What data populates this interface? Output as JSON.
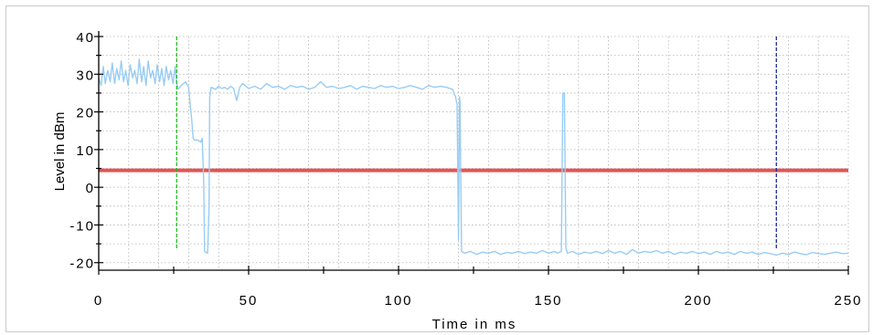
{
  "chart_data": {
    "type": "line",
    "title": "",
    "xlabel": "Time in ms",
    "ylabel": "Level in dBm",
    "xlim": [
      0,
      250
    ],
    "ylim": [
      -22,
      40
    ],
    "x_ticks": [
      0,
      50,
      100,
      150,
      200,
      250
    ],
    "y_ticks": [
      -20,
      -10,
      0,
      10,
      20,
      30,
      40
    ],
    "grid": true,
    "series": [
      {
        "color": "#99ccf5",
        "points": [
          [
            0,
            29
          ],
          [
            0.8,
            27
          ],
          [
            1.5,
            32
          ],
          [
            2.2,
            27.5
          ],
          [
            3,
            31
          ],
          [
            3.8,
            28
          ],
          [
            4.5,
            33
          ],
          [
            5.3,
            27.5
          ],
          [
            6,
            31.5
          ],
          [
            6.8,
            28.5
          ],
          [
            7.5,
            33.5
          ],
          [
            8.3,
            28
          ],
          [
            9,
            31
          ],
          [
            9.8,
            27
          ],
          [
            10.5,
            32.5
          ],
          [
            11.3,
            29
          ],
          [
            12,
            31
          ],
          [
            12.8,
            27.5
          ],
          [
            13.5,
            34
          ],
          [
            14.3,
            28
          ],
          [
            15,
            32
          ],
          [
            15.8,
            27
          ],
          [
            16.5,
            33.5
          ],
          [
            17.3,
            29
          ],
          [
            18,
            31
          ],
          [
            18.8,
            27.5
          ],
          [
            19.5,
            32.5
          ],
          [
            20.3,
            28
          ],
          [
            21,
            31.5
          ],
          [
            21.8,
            27
          ],
          [
            22.5,
            32
          ],
          [
            23.3,
            28.5
          ],
          [
            24,
            31
          ],
          [
            24.8,
            27.5
          ],
          [
            25.5,
            32
          ],
          [
            26,
            27.5
          ],
          [
            26.5,
            26
          ],
          [
            27.5,
            27
          ],
          [
            29,
            28
          ],
          [
            30,
            26.5
          ],
          [
            30.5,
            22
          ],
          [
            31,
            18
          ],
          [
            31.5,
            13
          ],
          [
            32,
            12.5
          ],
          [
            33,
            12.5
          ],
          [
            34,
            12
          ],
          [
            34.5,
            13
          ],
          [
            35,
            2
          ],
          [
            35.3,
            -17
          ],
          [
            36.3,
            -17.5
          ],
          [
            36.8,
            -5
          ],
          [
            37,
            24
          ],
          [
            37.5,
            26.5
          ],
          [
            39,
            26
          ],
          [
            40,
            26.8
          ],
          [
            41,
            26.2
          ],
          [
            42,
            26.5
          ],
          [
            43,
            26
          ],
          [
            44,
            26.8
          ],
          [
            45,
            26.2
          ],
          [
            46,
            23
          ],
          [
            47,
            26.5
          ],
          [
            48,
            27.5
          ],
          [
            50,
            26.2
          ],
          [
            52,
            26.8
          ],
          [
            54,
            26
          ],
          [
            56,
            27.5
          ],
          [
            58,
            26.5
          ],
          [
            60,
            26.8
          ],
          [
            62,
            26
          ],
          [
            64,
            27
          ],
          [
            66,
            26.5
          ],
          [
            68,
            26.8
          ],
          [
            70,
            26
          ],
          [
            72,
            26.5
          ],
          [
            74,
            28
          ],
          [
            76,
            26.5
          ],
          [
            78,
            26.8
          ],
          [
            80,
            26.2
          ],
          [
            82,
            26.5
          ],
          [
            84,
            27
          ],
          [
            86,
            26
          ],
          [
            88,
            26.8
          ],
          [
            90,
            26.5
          ],
          [
            92,
            26.2
          ],
          [
            94,
            27
          ],
          [
            96,
            26.5
          ],
          [
            98,
            26.8
          ],
          [
            100,
            26.2
          ],
          [
            102,
            26.5
          ],
          [
            104,
            27
          ],
          [
            106,
            26.5
          ],
          [
            108,
            26
          ],
          [
            110,
            27
          ],
          [
            112,
            26.5
          ],
          [
            114,
            26.8
          ],
          [
            116,
            26.5
          ],
          [
            118,
            26
          ],
          [
            119,
            24
          ],
          [
            119.5,
            22
          ],
          [
            120,
            -14
          ],
          [
            120.3,
            24
          ],
          [
            120.5,
            22.5
          ],
          [
            121,
            -17
          ],
          [
            122,
            -17.5
          ],
          [
            124,
            -17
          ],
          [
            126,
            -17.8
          ],
          [
            128,
            -17.2
          ],
          [
            130,
            -17.5
          ],
          [
            132,
            -17
          ],
          [
            134,
            -17.8
          ],
          [
            136,
            -17.3
          ],
          [
            138,
            -17.5
          ],
          [
            140,
            -17
          ],
          [
            142,
            -17.6
          ],
          [
            144,
            -17.2
          ],
          [
            146,
            -17.5
          ],
          [
            148,
            -16.8
          ],
          [
            150,
            -17.5
          ],
          [
            152,
            -17
          ],
          [
            153,
            -17.5
          ],
          [
            154.3,
            -17
          ],
          [
            154.8,
            25
          ],
          [
            155.3,
            25
          ],
          [
            155.8,
            -16
          ],
          [
            156.3,
            -17.5
          ],
          [
            158,
            -17
          ],
          [
            160,
            -17.8
          ],
          [
            162,
            -17.2
          ],
          [
            164,
            -17.5
          ],
          [
            166,
            -17
          ],
          [
            168,
            -17.6
          ],
          [
            170,
            -16.8
          ],
          [
            172,
            -17.5
          ],
          [
            174,
            -17
          ],
          [
            176,
            -17.8
          ],
          [
            178,
            -16.5
          ],
          [
            180,
            -17.5
          ],
          [
            182,
            -17
          ],
          [
            184,
            -17.3
          ],
          [
            186,
            -16.8
          ],
          [
            188,
            -17.5
          ],
          [
            190,
            -17
          ],
          [
            192,
            -17.8
          ],
          [
            194,
            -17.2
          ],
          [
            196,
            -17.5
          ],
          [
            198,
            -17
          ],
          [
            200,
            -17.6
          ],
          [
            202,
            -17.2
          ],
          [
            204,
            -17.8
          ],
          [
            206,
            -17
          ],
          [
            208,
            -17.5
          ],
          [
            210,
            -17.2
          ],
          [
            212,
            -17.8
          ],
          [
            214,
            -17
          ],
          [
            216,
            -17.5
          ],
          [
            218,
            -17.2
          ],
          [
            220,
            -17.8
          ],
          [
            222,
            -17.3
          ],
          [
            224,
            -17.6
          ],
          [
            226,
            -18
          ],
          [
            228,
            -17.5
          ],
          [
            230,
            -17.8
          ],
          [
            232,
            -17.2
          ],
          [
            234,
            -17.6
          ],
          [
            236,
            -17.9
          ],
          [
            238,
            -17.3
          ],
          [
            240,
            -17.6
          ],
          [
            242,
            -17.8
          ],
          [
            244,
            -17.5
          ],
          [
            246,
            -17.2
          ],
          [
            248,
            -17.6
          ],
          [
            250,
            -17.5
          ]
        ]
      }
    ],
    "threshold_line": {
      "y": 4.5,
      "color": "#e05555"
    },
    "markers": [
      {
        "x": 26,
        "color": "#22bb22"
      },
      {
        "x": 226,
        "color": "#1a2a99"
      }
    ]
  }
}
